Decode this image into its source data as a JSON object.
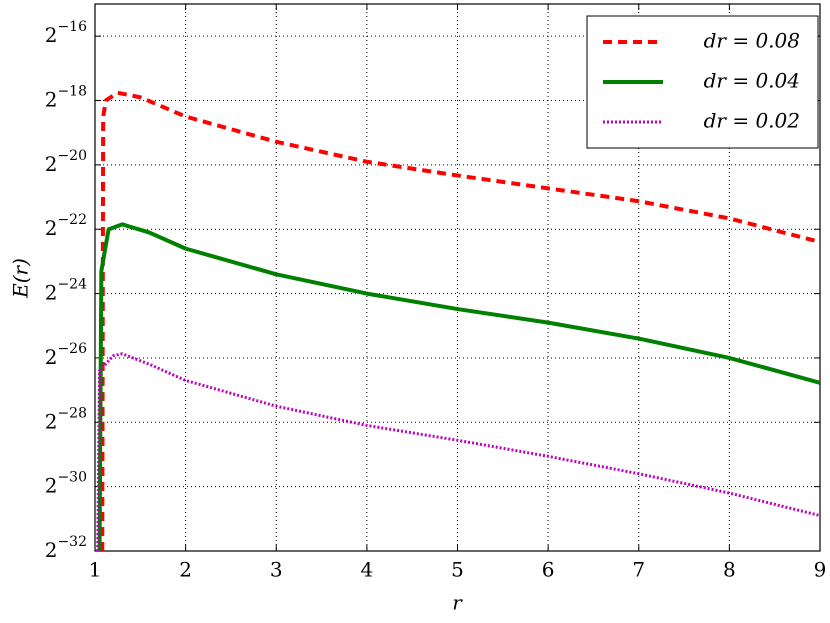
{
  "chart_data": {
    "type": "line",
    "xlabel": "r",
    "ylabel": "E(r)",
    "log_scale_y": true,
    "log_base": 2,
    "grid": true,
    "legend": "upper right",
    "xlim": [
      1,
      9
    ],
    "xticks": [
      1,
      2,
      3,
      4,
      5,
      6,
      7,
      8,
      9
    ],
    "ylim": [
      2.3283064365386963e-10,
      3.0517578125e-05
    ],
    "yticks": [
      {
        "value": 2.3283064365386963e-10,
        "label": "2−32"
      },
      {
        "value": 9.313225746154785e-10,
        "label": "2−30"
      },
      {
        "value": 3.725290298461914e-09,
        "label": "2−28"
      },
      {
        "value": 1.4901161193847656e-08,
        "label": "2−26"
      },
      {
        "value": 5.960464477539063e-08,
        "label": "2−24"
      },
      {
        "value": 2.384185791015625e-07,
        "label": "2−22"
      },
      {
        "value": 9.5367431640625e-07,
        "label": "2−20"
      },
      {
        "value": 3.814697265625e-06,
        "label": "2−18"
      },
      {
        "value": 1.52587890625e-05,
        "label": "2−16"
      }
    ],
    "series": [
      {
        "name": "dr = 0.08",
        "color": "#ff0000",
        "dash": "9,6",
        "width": 4,
        "x": [
          1.08,
          1.09,
          1.12,
          1.25,
          1.5,
          2,
          3,
          4,
          5,
          6,
          7,
          8,
          9
        ],
        "values": [
          2.33e-10,
          2.7e-06,
          3.82e-06,
          4.51e-06,
          4.09e-06,
          2.7e-06,
          1.57e-06,
          1.02e-06,
          7.59e-07,
          5.75e-07,
          4.36e-07,
          3.01e-07,
          1.81e-07
        ]
      },
      {
        "name": "dr = 0.04",
        "color": "#008000",
        "dash": "none",
        "width": 4,
        "x": [
          1.05,
          1.07,
          1.15,
          1.3,
          1.6,
          2,
          3,
          4,
          5,
          6,
          7,
          8,
          9
        ],
        "values": [
          2.33e-10,
          9.68e-08,
          2.38e-07,
          2.65e-07,
          2.22e-07,
          1.57e-07,
          9.03e-08,
          5.96e-08,
          4.27e-08,
          3.19e-08,
          2.26e-08,
          1.49e-08,
          8.73e-09
        ]
      },
      {
        "name": "dr = 0.02",
        "color": "#bf00bf",
        "dash": "2,2",
        "width": 3,
        "x": [
          1.03,
          1.05,
          1.2,
          1.3,
          1.6,
          2,
          3,
          4,
          5,
          6,
          7,
          8,
          9
        ],
        "values": [
          2.33e-10,
          1.13e-08,
          1.56e-08,
          1.63e-08,
          1.3e-08,
          9.18e-09,
          5.27e-09,
          3.48e-09,
          2.53e-09,
          1.79e-09,
          1.23e-09,
          8.11e-10,
          4.99e-10
        ]
      }
    ]
  }
}
